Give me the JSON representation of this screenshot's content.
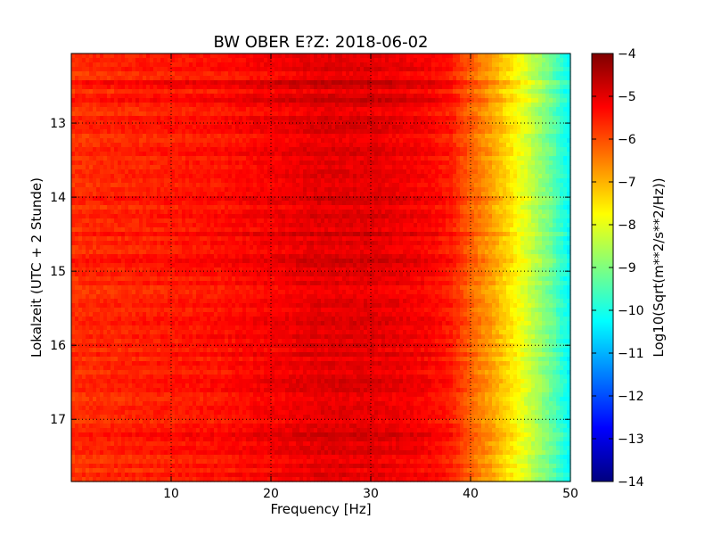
{
  "chart_data": {
    "type": "heatmap",
    "title": "BW OBER E?Z: 2018-06-02",
    "xlabel": "Frequency [Hz]",
    "ylabel": "Lokalzeit (UTC + 2 Stunde)",
    "xlim": [
      0,
      50
    ],
    "ylim": [
      12.06,
      17.84
    ],
    "y_inverted": true,
    "x_ticks": [
      10,
      20,
      30,
      40,
      50
    ],
    "y_ticks": [
      13,
      14,
      15,
      16,
      17
    ],
    "grid": true,
    "colormap": "jet",
    "colorbar": {
      "label": "Log10(Sqrt(m**2/s**2/Hz))",
      "range": [
        -14,
        -4
      ],
      "ticks": [
        -4,
        -5,
        -6,
        -7,
        -8,
        -9,
        -10,
        -11,
        -12,
        -13,
        -14
      ]
    },
    "frequency_profile": {
      "frequency_hz": [
        0,
        5,
        10,
        15,
        20,
        25,
        30,
        35,
        38,
        40,
        42,
        44,
        46,
        48,
        50
      ],
      "log10_amplitude": [
        -5.7,
        -5.6,
        -5.5,
        -5.4,
        -5.2,
        -5.0,
        -5.0,
        -5.2,
        -5.5,
        -6.2,
        -6.8,
        -7.5,
        -8.3,
        -9.2,
        -10.3
      ]
    }
  },
  "colors": {
    "jet_stops": [
      "#00007f",
      "#0000ff",
      "#007fff",
      "#00ffff",
      "#7fff7f",
      "#ffff00",
      "#ff7f00",
      "#ff0000",
      "#7f0000"
    ]
  }
}
